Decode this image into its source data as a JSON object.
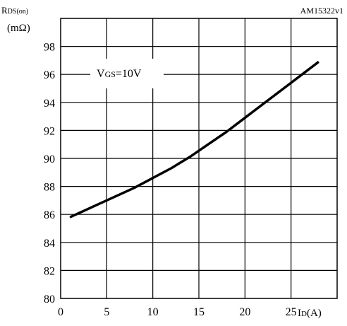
{
  "figure_id": "AM15322v1",
  "chart_data": {
    "type": "line",
    "ylabel_main": "R",
    "ylabel_sub": "DS(on)",
    "yunit": "(mΩ)",
    "xlabel_main": "I",
    "xlabel_sub": "D",
    "xunit": "(A)",
    "annotation_main": "V",
    "annotation_sub": "GS",
    "annotation_value": "=10V",
    "xlim": [
      0,
      30
    ],
    "ylim": [
      80,
      100
    ],
    "x_ticks": [
      0,
      5,
      10,
      15,
      20,
      25
    ],
    "y_ticks": [
      80,
      82,
      84,
      86,
      88,
      90,
      92,
      94,
      96,
      98
    ],
    "grid": true,
    "series": [
      {
        "x": [
          1,
          2,
          4,
          6,
          8,
          10,
          12,
          14,
          16,
          18,
          20,
          22,
          24,
          26,
          28
        ],
        "y": [
          85.8,
          86.1,
          86.7,
          87.3,
          87.9,
          88.6,
          89.3,
          90.1,
          91.0,
          91.9,
          92.9,
          93.9,
          94.9,
          95.9,
          96.9
        ]
      }
    ],
    "line_color": "#000000"
  }
}
